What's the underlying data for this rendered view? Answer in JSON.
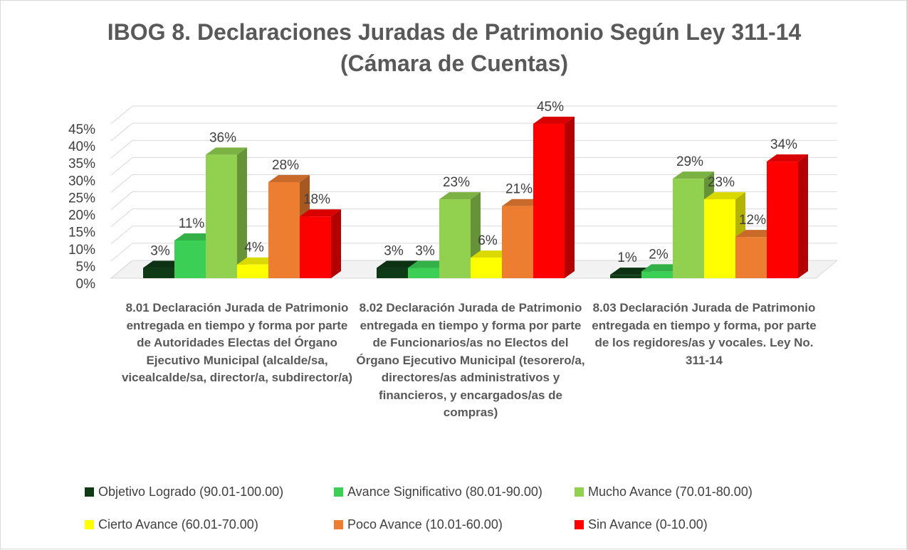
{
  "chart_data": {
    "type": "bar3d",
    "title": [
      "IBOG 8. Declaraciones Juradas de Patrimonio Según Ley 311-14",
      "(Cámara de Cuentas)"
    ],
    "categories": [
      "8.01 Declaración Jurada de Patrimonio entregada en tiempo y forma por parte de Autoridades Electas del Órgano Ejecutivo Municipal (alcalde/sa, vicealcalde/sa, director/a, subdirector/a)",
      "8.02 Declaración Jurada de Patrimonio entregada en tiempo y forma por parte de Funcionarios/as no Electos del Órgano Ejecutivo Municipal (tesorero/a, directores/as administrativos y financieros, y encargados/as de compras)",
      "8.03 Declaración Jurada de Patrimonio entregada en tiempo y forma, por parte de los regidores/as y vocales. Ley No. 311-14"
    ],
    "series": [
      {
        "name": "Objetivo Logrado (90.01-100.00)",
        "color": "#0e3b16",
        "values": [
          3,
          3,
          1
        ],
        "value_labels": [
          "3%",
          "3%",
          "1%"
        ]
      },
      {
        "name": "Avance Significativo (80.01-90.00)",
        "color": "#3ccf55",
        "values": [
          11,
          3,
          2
        ],
        "value_labels": [
          "11%",
          "3%",
          "2%"
        ]
      },
      {
        "name": "Mucho Avance (70.01-80.00)",
        "color": "#92d050",
        "values": [
          36,
          23,
          29
        ],
        "value_labels": [
          "36%",
          "23%",
          "29%"
        ]
      },
      {
        "name": "Cierto Avance (60.01-70.00)",
        "color": "#ffff00",
        "values": [
          4,
          6,
          23
        ],
        "value_labels": [
          "4%",
          "6%",
          "23%"
        ]
      },
      {
        "name": "Poco Avance (10.01-60.00)",
        "color": "#ed7d31",
        "values": [
          28,
          21,
          12
        ],
        "value_labels": [
          "28%",
          "21%",
          "12%"
        ]
      },
      {
        "name": "Sin Avance (0-10.00)",
        "color": "#ff0000",
        "values": [
          18,
          45,
          34
        ],
        "value_labels": [
          "18%",
          "45%",
          "34%"
        ]
      }
    ],
    "ylim": [
      0,
      45
    ],
    "yticks": [
      {
        "value": 0,
        "label": "0%"
      },
      {
        "value": 5,
        "label": "5%"
      },
      {
        "value": 10,
        "label": "10%"
      },
      {
        "value": 15,
        "label": "15%"
      },
      {
        "value": 20,
        "label": "20%"
      },
      {
        "value": 25,
        "label": "25%"
      },
      {
        "value": 30,
        "label": "30%"
      },
      {
        "value": 35,
        "label": "35%"
      },
      {
        "value": 40,
        "label": "40%"
      },
      {
        "value": 45,
        "label": "45%"
      }
    ],
    "grid": true,
    "legend": "bottom"
  }
}
